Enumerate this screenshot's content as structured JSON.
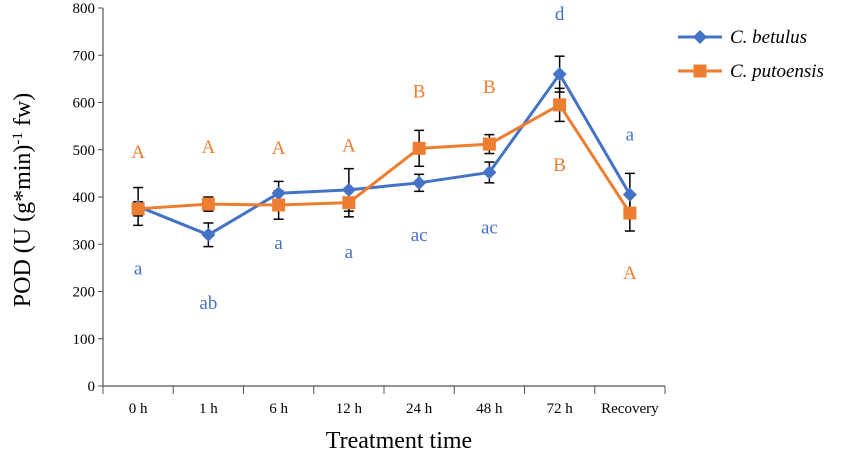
{
  "chart_data": {
    "type": "line",
    "title": "",
    "xlabel": "Treatment time",
    "ylabel_main": "POD (U (g*min)",
    "ylabel_sup": "-1",
    "ylabel_tail": " fw)",
    "ylim": [
      0,
      800
    ],
    "yticks": [
      "0",
      "100",
      "200",
      "300",
      "400",
      "500",
      "600",
      "700",
      "800"
    ],
    "categories": [
      "0 h",
      "1 h",
      "6 h",
      "12 h",
      "24 h",
      "48 h",
      "72 h",
      "Recovery"
    ],
    "grid": false,
    "legend_position": "top-right",
    "series": [
      {
        "name": "C. betulus",
        "color": "#4472C4",
        "marker": "diamond",
        "values": [
          380,
          320,
          408,
          415,
          430,
          452,
          660,
          405
        ],
        "errors": [
          40,
          25,
          25,
          45,
          18,
          22,
          38,
          45
        ],
        "letters": [
          "a",
          "ab",
          "a",
          "a",
          "ac",
          "ac",
          "d",
          "a"
        ]
      },
      {
        "name": "C. putoensis",
        "color": "#ED7D31",
        "marker": "square",
        "values": [
          375,
          385,
          383,
          388,
          503,
          512,
          595,
          366
        ],
        "errors": [
          15,
          15,
          30,
          30,
          38,
          20,
          35,
          38
        ],
        "letters": [
          "A",
          "A",
          "A",
          "A",
          "B",
          "B",
          "B",
          "A"
        ]
      }
    ]
  }
}
